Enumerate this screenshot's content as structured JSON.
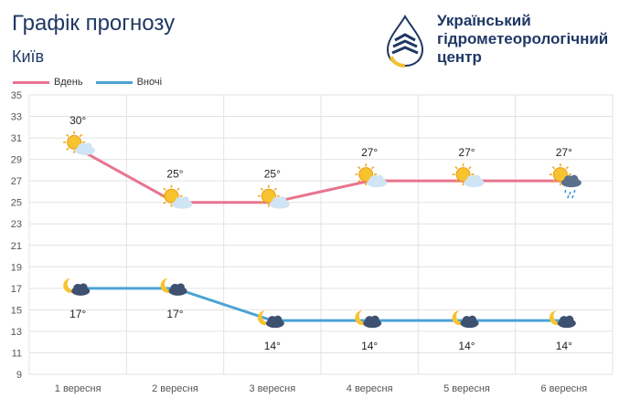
{
  "header": {
    "title": "Графік прогнозу",
    "city": "Київ",
    "org_line1": "Український",
    "org_line2": "гідрометеорологічний",
    "org_line3": "центр"
  },
  "colors": {
    "day": "#e8758f",
    "night": "#4ba3d6",
    "title": "#1f3864",
    "grid": "#e3e3e3"
  },
  "chart_data": {
    "type": "line",
    "categories": [
      "1 вересня",
      "2 вересня",
      "3 вересня",
      "4 вересня",
      "5 вересня",
      "6 вересня"
    ],
    "series": [
      {
        "name": "Вдень",
        "values": [
          30,
          25,
          25,
          27,
          27,
          27
        ],
        "labels": [
          "30°",
          "25°",
          "25°",
          "27°",
          "27°",
          "27°"
        ],
        "icons": [
          "sun-cloud-icon",
          "sun-cloud-icon",
          "sun-cloud-icon",
          "sun-cloud-icon",
          "sun-cloud-icon",
          "sun-rain-cloud-icon"
        ]
      },
      {
        "name": "Вночі",
        "values": [
          17,
          17,
          14,
          14,
          14,
          14
        ],
        "labels": [
          "17°",
          "17°",
          "14°",
          "14°",
          "14°",
          "14°"
        ],
        "icons": [
          "moon-cloud-icon",
          "moon-cloud-icon",
          "moon-cloud-icon",
          "moon-cloud-icon",
          "moon-cloud-icon",
          "moon-cloud-icon"
        ]
      }
    ],
    "ylim": [
      9,
      35
    ],
    "yticks": [
      9,
      11,
      13,
      15,
      17,
      19,
      21,
      23,
      25,
      27,
      29,
      31,
      33,
      35
    ],
    "grid": true,
    "legend": "top-left"
  }
}
